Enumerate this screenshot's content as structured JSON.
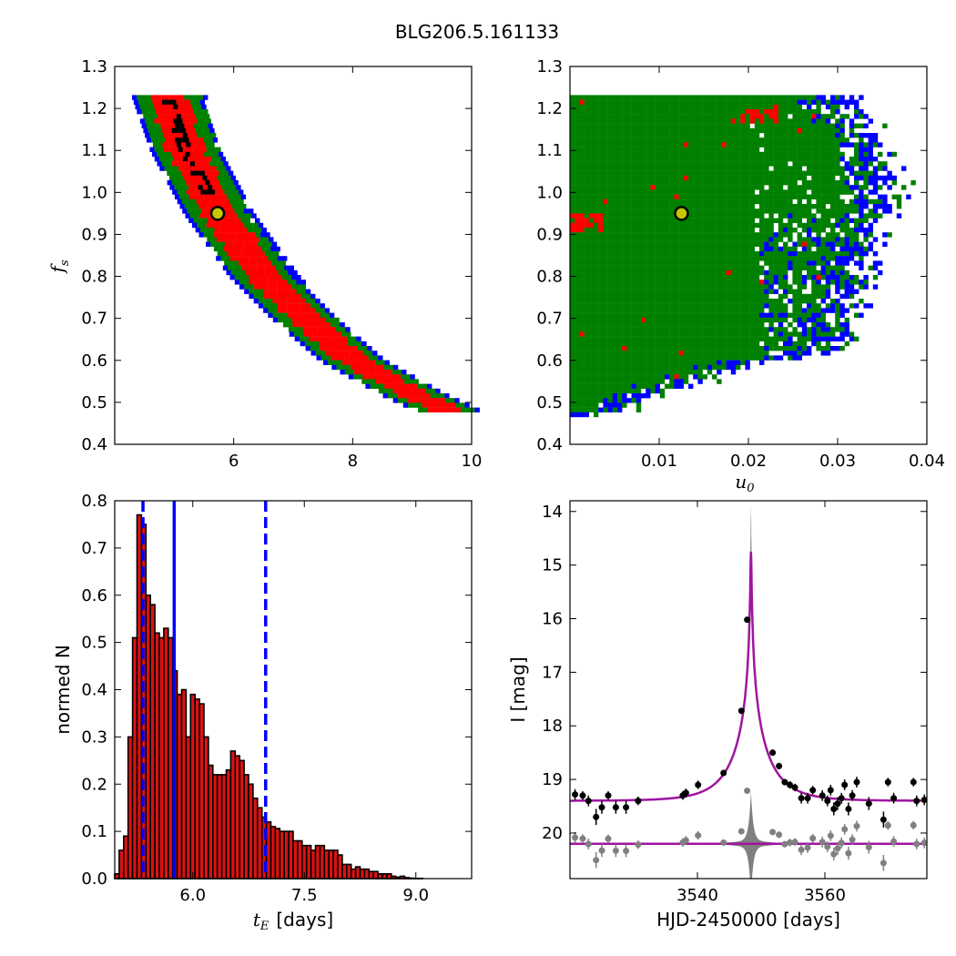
{
  "title": "BLG206.5.161133",
  "colors": {
    "blue": "#0000ff",
    "green": "#008000",
    "red": "#ff0000",
    "black": "#000000",
    "bar_fill": "#dd1111",
    "fit": "#a0149f",
    "resid": "#808080",
    "best": "#c8c800"
  },
  "chart_data": [
    {
      "panel": "top-left",
      "type": "heatmap",
      "xlabel": "",
      "ylabel_base": "f",
      "ylabel_sub": "s",
      "xlim": [
        4,
        10
      ],
      "ylim": [
        0.4,
        1.3
      ],
      "xticks": [
        "6",
        "8",
        "10"
      ],
      "yticks": [
        "0.4",
        "0.5",
        "0.6",
        "0.7",
        "0.8",
        "0.9",
        "1.0",
        "1.1",
        "1.2",
        "1.3"
      ],
      "best_fit": {
        "x": 5.73,
        "y": 0.95
      },
      "band": [
        {
          "fs": 1.23,
          "tE": 4.9
        },
        {
          "fs": 1.1,
          "tE": 5.2
        },
        {
          "fs": 0.95,
          "tE": 5.75
        },
        {
          "fs": 0.8,
          "tE": 6.5
        },
        {
          "fs": 0.7,
          "tE": 7.2
        },
        {
          "fs": 0.6,
          "tE": 8.0
        },
        {
          "fs": 0.52,
          "tE": 9.0
        },
        {
          "fs": 0.48,
          "tE": 9.6
        }
      ]
    },
    {
      "panel": "top-right",
      "type": "heatmap",
      "xlabel_base": "u",
      "xlabel_sub": "0",
      "ylabel": "",
      "xlim": [
        0,
        0.04
      ],
      "ylim": [
        0.4,
        1.3
      ],
      "xticks": [
        "0.01",
        "0.02",
        "0.03",
        "0.04"
      ],
      "yticks": [
        "0.4",
        "0.5",
        "0.6",
        "0.7",
        "0.8",
        "0.9",
        "1.0",
        "1.1",
        "1.2",
        "1.3"
      ],
      "best_fit": {
        "x": 0.0125,
        "y": 0.95
      }
    },
    {
      "panel": "bottom-left",
      "type": "bar",
      "xlabel_base": "t",
      "xlabel_sub": "E",
      "xlabel_unit": "[days]",
      "ylabel": "normed N",
      "xlim": [
        4.95,
        9.75
      ],
      "ylim": [
        0.0,
        0.8
      ],
      "xticks": [
        "6.0",
        "7.5",
        "9.0"
      ],
      "yticks": [
        "0.0",
        "0.1",
        "0.2",
        "0.3",
        "0.4",
        "0.5",
        "0.6",
        "0.7",
        "0.8"
      ],
      "bin_start": 4.95,
      "bin_width": 0.06,
      "values": [
        0.01,
        0.06,
        0.09,
        0.3,
        0.51,
        0.77,
        0.75,
        0.6,
        0.58,
        0.52,
        0.51,
        0.53,
        0.51,
        0.44,
        0.39,
        0.4,
        0.3,
        0.39,
        0.38,
        0.37,
        0.3,
        0.24,
        0.22,
        0.22,
        0.22,
        0.23,
        0.27,
        0.26,
        0.25,
        0.22,
        0.2,
        0.17,
        0.15,
        0.13,
        0.12,
        0.11,
        0.106,
        0.1,
        0.1,
        0.1,
        0.08,
        0.08,
        0.07,
        0.07,
        0.06,
        0.07,
        0.07,
        0.06,
        0.06,
        0.06,
        0.05,
        0.03,
        0.03,
        0.02,
        0.025,
        0.02,
        0.02,
        0.015,
        0.015,
        0.01,
        0.01,
        0.01,
        0.005,
        0.003,
        0.005,
        0.002,
        0.001,
        0.0005,
        0.0005,
        0.0,
        0.0,
        0.0,
        0.0,
        0.0,
        0.0,
        0.0,
        0.0,
        0.0,
        0.0,
        0.0
      ],
      "vlines": [
        {
          "x": 5.33,
          "style": "dashed"
        },
        {
          "x": 5.75,
          "style": "solid"
        },
        {
          "x": 6.98,
          "style": "dashed"
        }
      ]
    },
    {
      "panel": "bottom-right",
      "type": "scatter",
      "xlabel": "HJD-2450000 [days]",
      "ylabel": "I [mag]",
      "xlim": [
        3520,
        3576
      ],
      "ylim": [
        20.85,
        13.8
      ],
      "xticks": [
        "3540",
        "3560"
      ],
      "yticks": [
        "14",
        "15",
        "16",
        "17",
        "18",
        "19",
        "20"
      ],
      "model": {
        "t0": 3548.4,
        "baseline": 19.4,
        "peak": 14.75,
        "u0": 0.0125,
        "tE": 5.73
      },
      "resid_offset": 20.2,
      "points": [
        {
          "t": 3520.8,
          "m": 19.28,
          "e": 0.1
        },
        {
          "t": 3522.0,
          "m": 19.3,
          "e": 0.08
        },
        {
          "t": 3522.9,
          "m": 19.4,
          "e": 0.1
        },
        {
          "t": 3524.1,
          "m": 19.7,
          "e": 0.15
        },
        {
          "t": 3525.0,
          "m": 19.52,
          "e": 0.12
        },
        {
          "t": 3526.0,
          "m": 19.3,
          "e": 0.08
        },
        {
          "t": 3527.2,
          "m": 19.52,
          "e": 0.12
        },
        {
          "t": 3528.8,
          "m": 19.52,
          "e": 0.12
        },
        {
          "t": 3530.7,
          "m": 19.4,
          "e": 0.08
        },
        {
          "t": 3537.7,
          "m": 19.3,
          "e": 0.08
        },
        {
          "t": 3538.2,
          "m": 19.25,
          "e": 0.08
        },
        {
          "t": 3540.1,
          "m": 19.1,
          "e": 0.08
        },
        {
          "t": 3544.1,
          "m": 18.88,
          "e": 0.06
        },
        {
          "t": 3546.9,
          "m": 17.72,
          "e": 0.05
        },
        {
          "t": 3547.8,
          "m": 16.02,
          "e": 0.05
        },
        {
          "t": 3551.8,
          "m": 18.5,
          "e": 0.05
        },
        {
          "t": 3552.8,
          "m": 18.75,
          "e": 0.06
        },
        {
          "t": 3553.7,
          "m": 19.05,
          "e": 0.06
        },
        {
          "t": 3554.5,
          "m": 19.1,
          "e": 0.07
        },
        {
          "t": 3555.3,
          "m": 19.15,
          "e": 0.07
        },
        {
          "t": 3556.3,
          "m": 19.35,
          "e": 0.1
        },
        {
          "t": 3557.3,
          "m": 19.35,
          "e": 0.1
        },
        {
          "t": 3558.1,
          "m": 19.2,
          "e": 0.08
        },
        {
          "t": 3559.6,
          "m": 19.3,
          "e": 0.1
        },
        {
          "t": 3560.4,
          "m": 19.4,
          "e": 0.1
        },
        {
          "t": 3560.9,
          "m": 19.2,
          "e": 0.1
        },
        {
          "t": 3561.4,
          "m": 19.55,
          "e": 0.12
        },
        {
          "t": 3562.0,
          "m": 19.45,
          "e": 0.12
        },
        {
          "t": 3562.6,
          "m": 19.35,
          "e": 0.1
        },
        {
          "t": 3563.1,
          "m": 19.1,
          "e": 0.1
        },
        {
          "t": 3563.7,
          "m": 19.55,
          "e": 0.12
        },
        {
          "t": 3564.3,
          "m": 19.3,
          "e": 0.1
        },
        {
          "t": 3565.0,
          "m": 19.05,
          "e": 0.1
        },
        {
          "t": 3566.9,
          "m": 19.45,
          "e": 0.12
        },
        {
          "t": 3569.2,
          "m": 19.75,
          "e": 0.15
        },
        {
          "t": 3569.9,
          "m": 19.05,
          "e": 0.08
        },
        {
          "t": 3570.8,
          "m": 19.35,
          "e": 0.1
        },
        {
          "t": 3573.9,
          "m": 19.05,
          "e": 0.08
        },
        {
          "t": 3574.4,
          "m": 19.4,
          "e": 0.1
        },
        {
          "t": 3575.6,
          "m": 19.38,
          "e": 0.1
        }
      ]
    }
  ]
}
